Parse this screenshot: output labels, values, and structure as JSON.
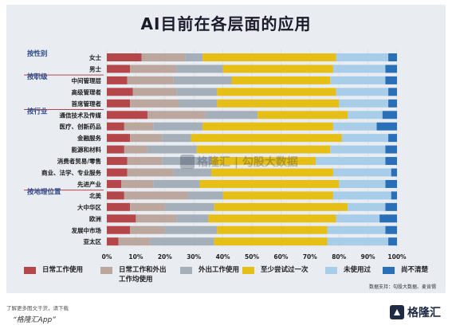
{
  "colors": {
    "series": [
      "#b5474a",
      "#bca79f",
      "#a5afb9",
      "#e6bf16",
      "#a7cde8",
      "#2970b8"
    ],
    "group_label": "#2f4b8a",
    "group_separator": "#b6464b"
  },
  "chart_data": {
    "type": "bar",
    "orientation": "horizontal",
    "stacked": "percent",
    "title": "AI目前在各层面的应用",
    "xlim": [
      0,
      100
    ],
    "x_ticks": [
      "0%",
      "10%",
      "20%",
      "30%",
      "40%",
      "50%",
      "60%",
      "70%",
      "80%",
      "90%",
      "100%"
    ],
    "legend_position": "bottom",
    "groups": [
      {
        "label": "按性别",
        "categories": [
          "女士",
          "男士"
        ]
      },
      {
        "label": "按职级",
        "categories": [
          "中间管理层",
          "高级管理者",
          "首席管理者"
        ]
      },
      {
        "label": "按行业",
        "categories": [
          "通信技术及传媒",
          "医疗、创新药品",
          "金融服务",
          "能源和材料",
          "消费者贸易/零售",
          "商业、法学、专业服务",
          "先进产业"
        ]
      },
      {
        "label": "按地理位置",
        "categories": [
          "北美",
          "大中华区",
          "欧洲",
          "发展中市场",
          "亚太区"
        ]
      }
    ],
    "categories": [
      "女士",
      "男士",
      "中间管理层",
      "高级管理者",
      "首席管理者",
      "通信技术及传媒",
      "医疗、创新药品",
      "金融服务",
      "能源和材料",
      "消费者贸易/零售",
      "商业、法学、专业服务",
      "先进产业",
      "北美",
      "大中华区",
      "欧洲",
      "发展中市场",
      "亚太区"
    ],
    "series": [
      {
        "name": "日常工作使用",
        "values": [
          12,
          8,
          7,
          9,
          8,
          14,
          6,
          8,
          6,
          7,
          7,
          5,
          6,
          8,
          10,
          8,
          4
        ]
      },
      {
        "name": "日常工作和外出工作均使用",
        "values": [
          15,
          16,
          16,
          15,
          17,
          20,
          10,
          11,
          8,
          12,
          16,
          11,
          22,
          12,
          14,
          12,
          11
        ]
      },
      {
        "name": "外出工作使用",
        "values": [
          6,
          16,
          20,
          14,
          13,
          18,
          17,
          10,
          17,
          17,
          13,
          16,
          12,
          17,
          11,
          18,
          22
        ]
      },
      {
        "name": "至少尝试过一次",
        "values": [
          46,
          38,
          34,
          41,
          42,
          31,
          45,
          52,
          46,
          36,
          42,
          48,
          38,
          46,
          44,
          38,
          39
        ]
      },
      {
        "name": "未使用过",
        "values": [
          18,
          18,
          19,
          18,
          17,
          12,
          15,
          16,
          19,
          24,
          20,
          16,
          20,
          13,
          15,
          20,
          21
        ]
      },
      {
        "name": "尚不清楚",
        "values": [
          3,
          4,
          4,
          3,
          3,
          5,
          7,
          3,
          4,
          4,
          2,
          4,
          2,
          4,
          6,
          4,
          3
        ]
      }
    ],
    "legend": [
      "日常工作使用",
      "日常工作和外出工作均使用",
      "外出工作使用",
      "至少尝试过一次",
      "未使用过",
      "尚不清楚"
    ]
  },
  "source": "数据支持：勾股大数据、麦肯锡",
  "watermark": "格隆汇 | 勾股大数据",
  "footer": {
    "note": "了解更多图文干货，请下载",
    "app": "“格隆汇App”",
    "brand": "格隆汇"
  }
}
